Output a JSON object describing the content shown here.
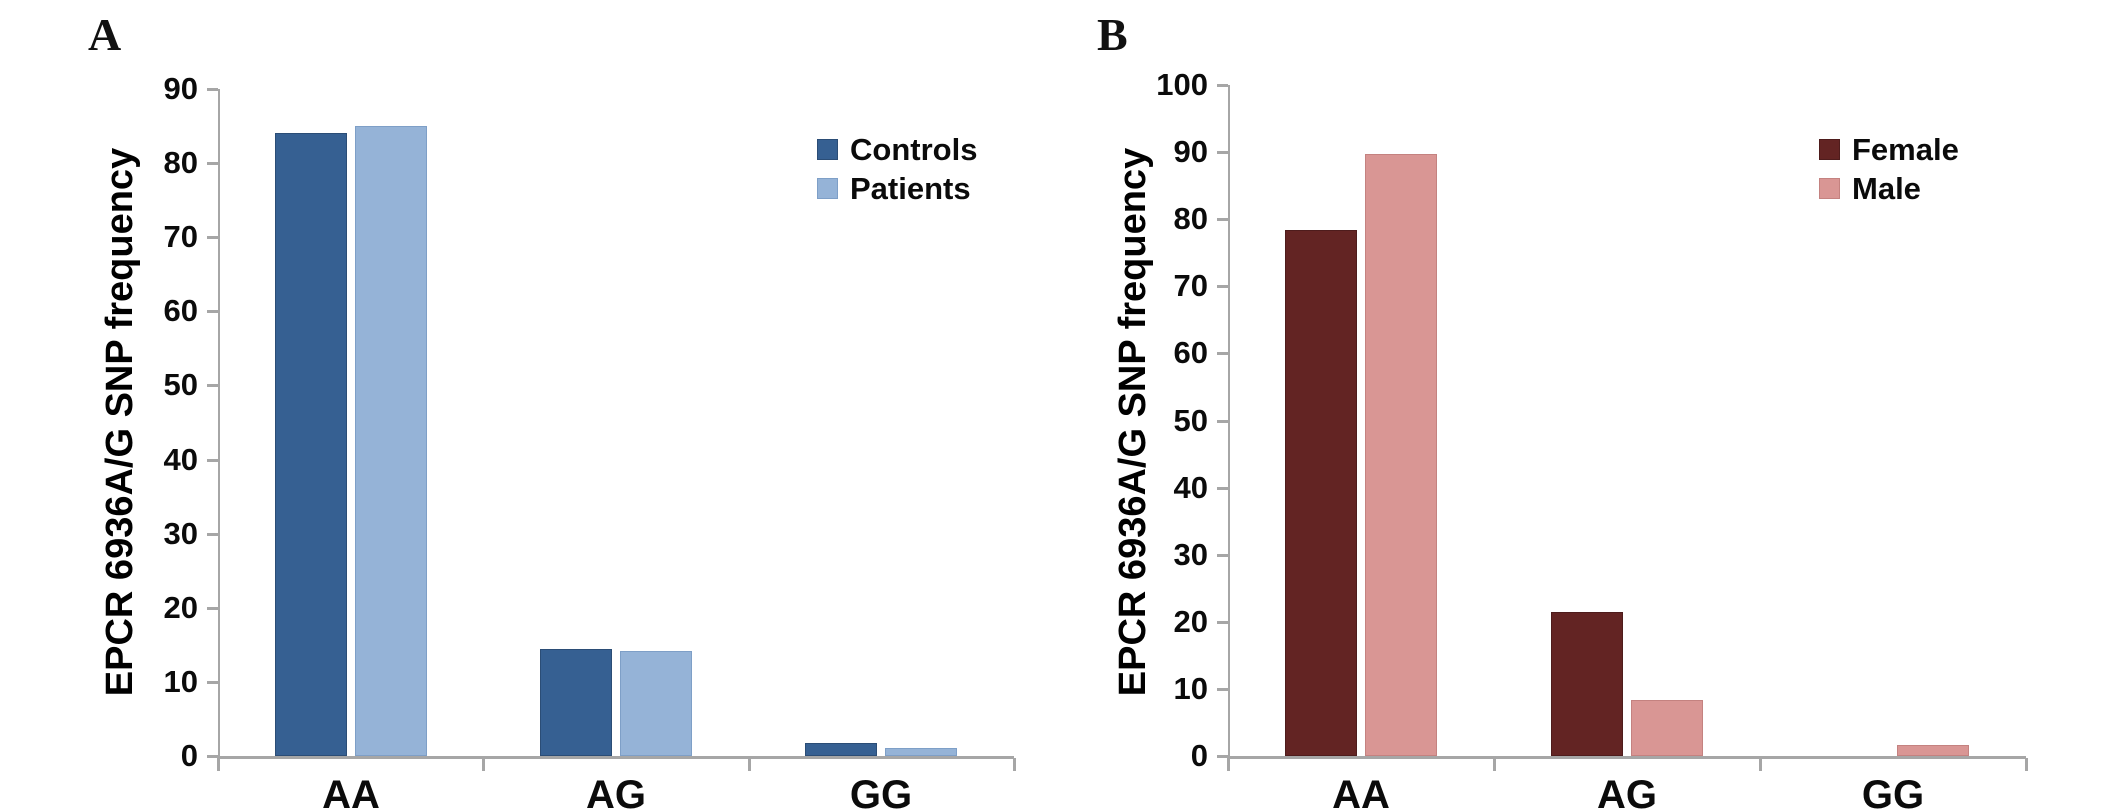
{
  "figure": {
    "background": "#FFFFFF",
    "text_color": "#000000",
    "axis_color": "#A6A6A6",
    "panels": [
      {
        "letter": "A"
      },
      {
        "letter": "B"
      }
    ]
  },
  "chart_data": [
    {
      "type": "bar",
      "panel_letter": "A",
      "title": "",
      "categories": [
        "AA",
        "AG",
        "GG"
      ],
      "series": [
        {
          "name": "Controls",
          "color": "#366092",
          "border": "#2B4D76",
          "values": [
            84.1,
            14.4,
            1.7
          ]
        },
        {
          "name": "Patients",
          "color": "#95B3D7",
          "border": "#7E9FC7",
          "values": [
            85.0,
            14.2,
            1.1
          ]
        }
      ],
      "xlabel": "",
      "ylabel": "EPCR 6936A/G SNP frequency",
      "ylim": [
        0,
        90
      ],
      "ytick_step": 10,
      "grid": false,
      "legend_position": "top-right"
    },
    {
      "type": "bar",
      "panel_letter": "B",
      "title": "",
      "categories": [
        "AA",
        "AG",
        "GG"
      ],
      "series": [
        {
          "name": "Female",
          "color": "#632423",
          "border": "#4E1C1C",
          "values": [
            78.4,
            21.4,
            0
          ]
        },
        {
          "name": "Male",
          "color": "#D99694",
          "border": "#C48280",
          "values": [
            89.7,
            8.4,
            1.6
          ]
        }
      ],
      "xlabel": "",
      "ylabel": "EPCR 6936A/G SNP frequency",
      "ylim": [
        0,
        100
      ],
      "ytick_step": 10,
      "grid": false,
      "legend_position": "top-right"
    }
  ]
}
